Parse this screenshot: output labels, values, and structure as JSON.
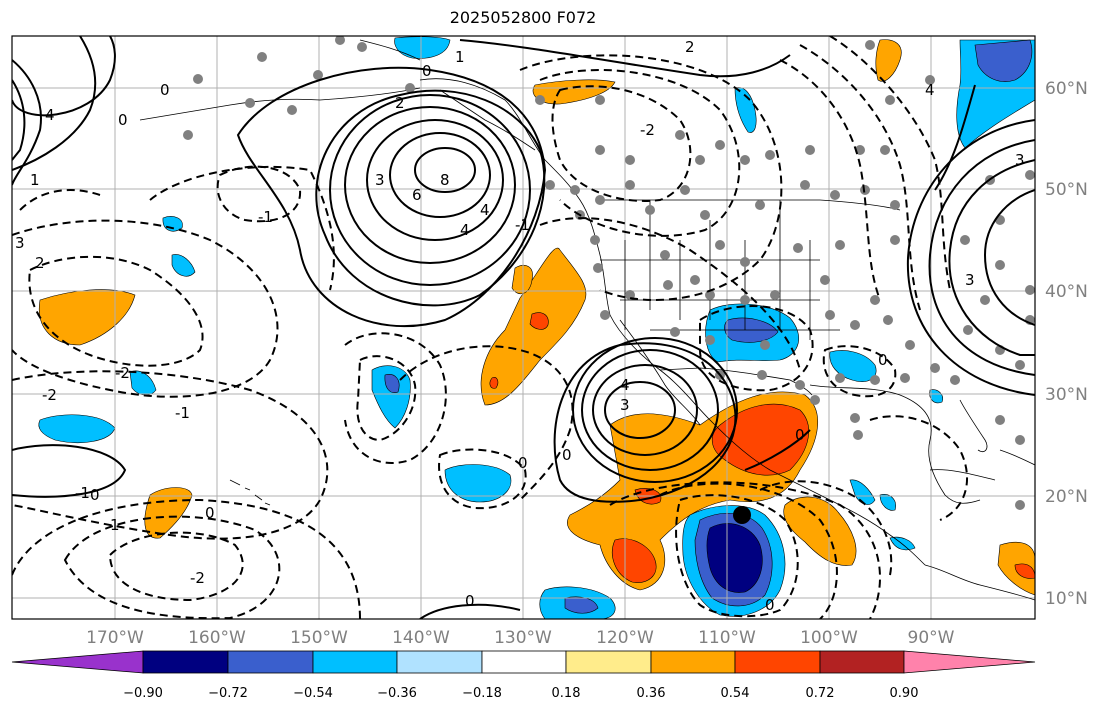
{
  "title": "2025052800 F072",
  "map": {
    "lon_labels": [
      "170°W",
      "160°W",
      "150°W",
      "140°W",
      "130°W",
      "120°W",
      "110°W",
      "100°W",
      "90°W"
    ],
    "lat_labels": [
      "60°N",
      "50°N",
      "40°N",
      "30°N",
      "20°N",
      "10°N"
    ],
    "contour_labels": [
      {
        "text": "8",
        "sym": "c1"
      },
      {
        "text": "6",
        "sym": "c2"
      },
      {
        "text": "4",
        "sym": "c3"
      },
      {
        "text": "3",
        "sym": "c4"
      },
      {
        "text": "2",
        "sym": "c5"
      },
      {
        "text": "1",
        "sym": "c6"
      },
      {
        "text": "-1",
        "sym": "c7"
      },
      {
        "text": "-2",
        "sym": "c8"
      },
      {
        "text": "0",
        "sym": "c9"
      },
      {
        "text": "4",
        "sym": "c10"
      },
      {
        "text": "3",
        "sym": "c11"
      },
      {
        "text": "2",
        "sym": "c12"
      },
      {
        "text": "1",
        "sym": "c13"
      },
      {
        "text": "0",
        "sym": "c14"
      },
      {
        "text": "0",
        "sym": "c15"
      },
      {
        "text": "-1",
        "sym": "c16"
      },
      {
        "text": "-2",
        "sym": "c17"
      },
      {
        "text": "-1",
        "sym": "c18"
      },
      {
        "text": "0",
        "sym": "c19"
      },
      {
        "text": "1",
        "sym": "c20"
      },
      {
        "text": "-2",
        "sym": "c21"
      },
      {
        "text": "0",
        "sym": "c22"
      },
      {
        "text": "0",
        "sym": "c23"
      },
      {
        "text": "0",
        "sym": "c24"
      },
      {
        "text": "0",
        "sym": "c25"
      },
      {
        "text": "4",
        "sym": "c26"
      },
      {
        "text": "3",
        "sym": "c27"
      },
      {
        "text": "-1",
        "sym": "c28"
      },
      {
        "text": "-2",
        "sym": "c29"
      },
      {
        "text": "2",
        "sym": "c30"
      },
      {
        "text": "3",
        "sym": "c31"
      },
      {
        "text": "4",
        "sym": "c32"
      },
      {
        "text": "3",
        "sym": "c33"
      },
      {
        "text": "0",
        "sym": "c34"
      },
      {
        "text": "0",
        "sym": "c35"
      },
      {
        "text": "4",
        "sym": "c36"
      },
      {
        "text": "0",
        "sym": "c37"
      }
    ]
  },
  "colorbar": {
    "colors": [
      "#9932cc",
      "#000080",
      "#3a5fcd",
      "#00bfff",
      "#b0e2ff",
      "#ffffff",
      "#ffec8b",
      "#ffa500",
      "#ff4500",
      "#b22222",
      "#ff82ab"
    ],
    "tick_labels": [
      "−0.90",
      "−0.72",
      "−0.54",
      "−0.36",
      "−0.18",
      "0.18",
      "0.36",
      "0.54",
      "0.72",
      "0.90"
    ]
  }
}
